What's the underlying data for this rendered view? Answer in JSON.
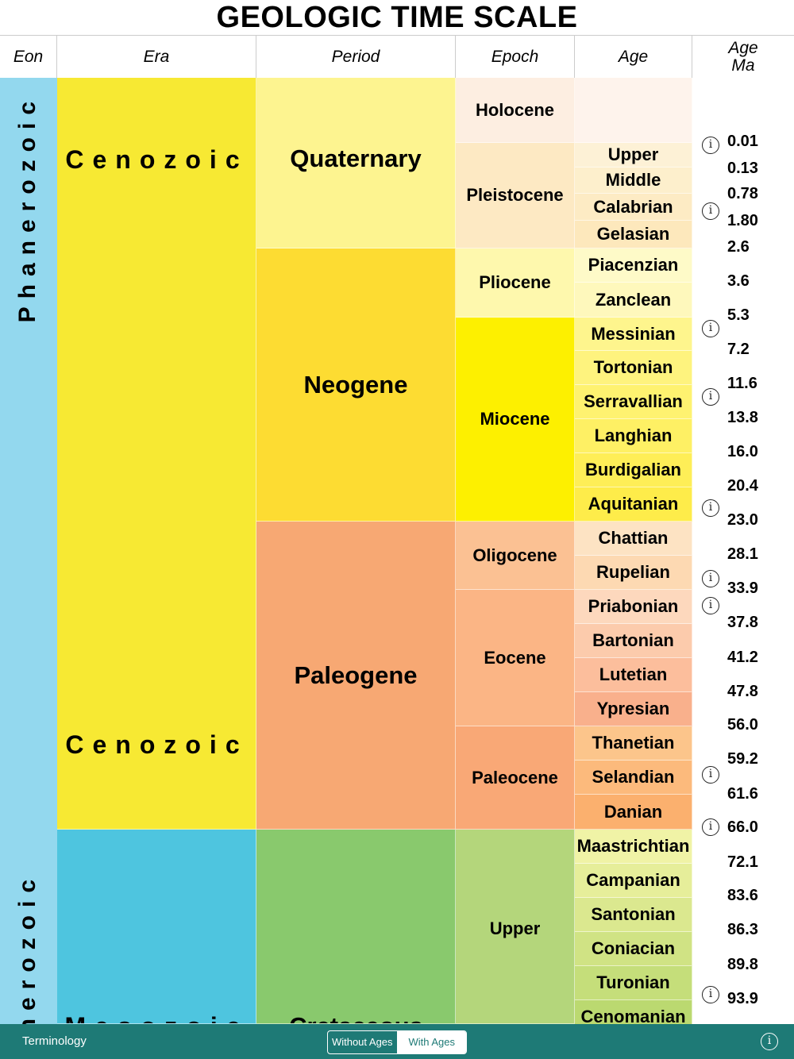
{
  "title": "GEOLOGIC TIME SCALE",
  "headers": {
    "eon": "Eon",
    "era": "Era",
    "period": "Period",
    "epoch": "Epoch",
    "age": "Age",
    "age_ma_line1": "Age",
    "age_ma_line2": "Ma"
  },
  "eons": [
    {
      "name": "Phanerozoic",
      "color": "#93d8ee"
    }
  ],
  "eras": [
    {
      "name": "Cenozoic",
      "color": "#f7e933"
    },
    {
      "name": "Mesozoic",
      "color": "#4ec5df"
    }
  ],
  "periods": [
    {
      "name": "Quaternary",
      "color": "#fdf490"
    },
    {
      "name": "Neogene",
      "color": "#fddc32"
    },
    {
      "name": "Paleogene",
      "color": "#f7a873"
    },
    {
      "name": "Cretaceous",
      "color": "#89c96d"
    }
  ],
  "epochs": [
    {
      "name": "Holocene",
      "color": "#fdeee1"
    },
    {
      "name": "Pleistocene",
      "color": "#fde9c3"
    },
    {
      "name": "Pliocene",
      "color": "#fef8ad"
    },
    {
      "name": "Miocene",
      "color": "#fdf000"
    },
    {
      "name": "Oligocene",
      "color": "#fbc193"
    },
    {
      "name": "Eocene",
      "color": "#fbb585"
    },
    {
      "name": "Paleocene",
      "color": "#f9a876"
    },
    {
      "name": "Upper",
      "color": "#b4d67b"
    }
  ],
  "ages": [
    {
      "name": "",
      "color": "#fef3ec"
    },
    {
      "name": "Upper",
      "color": "#fdf1d6"
    },
    {
      "name": "Middle",
      "color": "#fdefcc"
    },
    {
      "name": "Calabrian",
      "color": "#fdebc4"
    },
    {
      "name": "Gelasian",
      "color": "#fde8bc"
    },
    {
      "name": "Piacenzian",
      "color": "#fefac8"
    },
    {
      "name": "Zanclean",
      "color": "#fef8bc"
    },
    {
      "name": "Messinian",
      "color": "#fef58d"
    },
    {
      "name": "Tortonian",
      "color": "#fef37e"
    },
    {
      "name": "Serravallian",
      "color": "#fef270"
    },
    {
      "name": "Langhian",
      "color": "#fef064"
    },
    {
      "name": "Burdigalian",
      "color": "#feee57"
    },
    {
      "name": "Aquitanian",
      "color": "#feec4a"
    },
    {
      "name": "Chattian",
      "color": "#fde3c3"
    },
    {
      "name": "Rupelian",
      "color": "#fdd9b2"
    },
    {
      "name": "Priabonian",
      "color": "#fdd8bd"
    },
    {
      "name": "Bartonian",
      "color": "#fccbac"
    },
    {
      "name": "Lutetian",
      "color": "#fcbe9c"
    },
    {
      "name": "Ypresian",
      "color": "#f9b08c"
    },
    {
      "name": "Thanetian",
      "color": "#fcc58b"
    },
    {
      "name": "Selandian",
      "color": "#fcba7c"
    },
    {
      "name": "Danian",
      "color": "#fbb06e"
    },
    {
      "name": "Maastrichtian",
      "color": "#f0f3a6"
    },
    {
      "name": "Campanian",
      "color": "#e6ee9a"
    },
    {
      "name": "Santonian",
      "color": "#dbe88f"
    },
    {
      "name": "Coniacian",
      "color": "#d0e384"
    },
    {
      "name": "Turonian",
      "color": "#c5de7a"
    },
    {
      "name": "Cenomanian",
      "color": "#bbd970"
    }
  ],
  "ma_values": [
    "0.01",
    "0.13",
    "0.78",
    "1.80",
    "2.6",
    "3.6",
    "5.3",
    "7.2",
    "11.6",
    "13.8",
    "16.0",
    "20.4",
    "23.0",
    "28.1",
    "33.9",
    "37.8",
    "41.2",
    "47.8",
    "56.0",
    "59.2",
    "61.6",
    "66.0",
    "72.1",
    "83.6",
    "86.3",
    "89.8",
    "93.9"
  ],
  "info_symbol": "i",
  "footer": {
    "terminology": "Terminology",
    "toggle_without": "Without Ages",
    "toggle_with": "With Ages",
    "selected": "With Ages",
    "bg_color": "#1e7a76"
  }
}
